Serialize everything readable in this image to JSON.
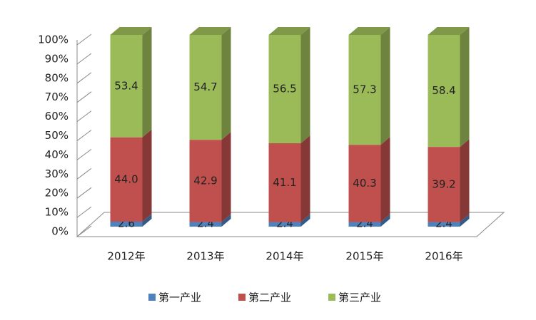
{
  "chart_data": {
    "type": "stacked-bar-3d",
    "categories": [
      "2012年",
      "2013年",
      "2014年",
      "2015年",
      "2016年"
    ],
    "series": [
      {
        "name": "第一产业",
        "color": "#4f81bd",
        "values": [
          2.6,
          2.4,
          2.4,
          2.4,
          2.4
        ],
        "value_labels": [
          "2.6",
          "2.4",
          "2.4",
          "2.4",
          "2.4"
        ]
      },
      {
        "name": "第二产业",
        "color": "#c0504d",
        "values": [
          44.0,
          42.9,
          41.1,
          40.3,
          39.2
        ],
        "value_labels": [
          "44.0",
          "42.9",
          "41.1",
          "40.3",
          "39.2"
        ]
      },
      {
        "name": "第三产业",
        "color": "#9bbb59",
        "values": [
          53.4,
          54.7,
          56.5,
          57.3,
          58.4
        ],
        "value_labels": [
          "53.4",
          "54.7",
          "56.5",
          "57.3",
          "58.4"
        ]
      }
    ],
    "ylim": [
      0,
      100
    ],
    "yticks": [
      {
        "value": 0,
        "label": "0%"
      },
      {
        "value": 10,
        "label": "10%"
      },
      {
        "value": 20,
        "label": "20%"
      },
      {
        "value": 30,
        "label": "30%"
      },
      {
        "value": 40,
        "label": "40%"
      },
      {
        "value": 50,
        "label": "50%"
      },
      {
        "value": 60,
        "label": "60%"
      },
      {
        "value": 70,
        "label": "70%"
      },
      {
        "value": 80,
        "label": "80%"
      },
      {
        "value": 90,
        "label": "90%"
      },
      {
        "value": 100,
        "label": "100%"
      }
    ],
    "grid": true,
    "legend": "bottom"
  }
}
